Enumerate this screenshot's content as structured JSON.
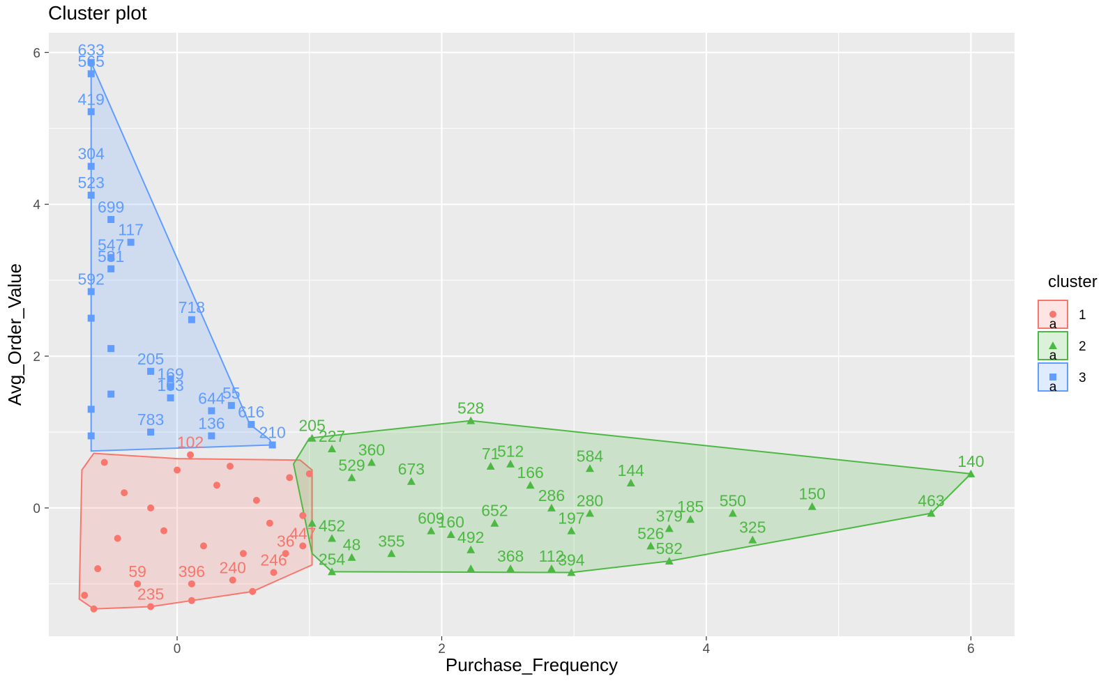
{
  "chart_data": {
    "type": "scatter",
    "title": "Cluster plot",
    "xlabel": "Purchase_Frequency",
    "ylabel": "Avg_Order_Value",
    "xlim": [
      -0.97,
      6.33
    ],
    "ylim": [
      -1.69,
      6.26
    ],
    "x_ticks": [
      0,
      2,
      4,
      6
    ],
    "y_ticks": [
      0,
      2,
      4,
      6
    ],
    "grid": true,
    "legend_position": "right",
    "legend_title": "cluster",
    "legend_glyph_text": "a",
    "series": [
      {
        "name": "1",
        "color": "#F8766D",
        "marker": "circle",
        "hull": [
          [
            -0.63,
            -1.33
          ],
          [
            -0.2,
            -1.3
          ],
          [
            0.11,
            -1.22
          ],
          [
            0.57,
            -1.1
          ],
          [
            1.02,
            -0.75
          ],
          [
            1.02,
            0.5
          ],
          [
            0.93,
            0.63
          ],
          [
            0.0,
            0.65
          ],
          [
            -0.63,
            0.72
          ],
          [
            -0.72,
            0.5
          ],
          [
            -0.74,
            -1.2
          ]
        ],
        "points": [
          {
            "x": -0.63,
            "y": -1.33,
            "label": ""
          },
          {
            "x": -0.2,
            "y": -1.3,
            "label": "235"
          },
          {
            "x": 0.11,
            "y": -1.22,
            "label": ""
          },
          {
            "x": 0.57,
            "y": -1.1,
            "label": ""
          },
          {
            "x": 0.73,
            "y": -0.85,
            "label": "246"
          },
          {
            "x": 0.42,
            "y": -0.95,
            "label": "240"
          },
          {
            "x": 0.11,
            "y": -1.0,
            "label": "396"
          },
          {
            "x": -0.3,
            "y": -1.0,
            "label": "59"
          },
          {
            "x": 0.82,
            "y": -0.6,
            "label": "36"
          },
          {
            "x": 0.95,
            "y": -0.5,
            "label": "447"
          },
          {
            "x": 0.5,
            "y": -0.6,
            "label": ""
          },
          {
            "x": 0.2,
            "y": -0.5,
            "label": ""
          },
          {
            "x": -0.1,
            "y": -0.3,
            "label": ""
          },
          {
            "x": -0.4,
            "y": 0.2,
            "label": ""
          },
          {
            "x": 0.0,
            "y": 0.5,
            "label": ""
          },
          {
            "x": 0.3,
            "y": 0.3,
            "label": ""
          },
          {
            "x": 0.6,
            "y": 0.1,
            "label": ""
          },
          {
            "x": 0.85,
            "y": 0.4,
            "label": ""
          },
          {
            "x": 1.0,
            "y": 0.45,
            "label": ""
          },
          {
            "x": -0.6,
            "y": -0.8,
            "label": ""
          },
          {
            "x": -0.55,
            "y": 0.6,
            "label": ""
          },
          {
            "x": 0.1,
            "y": 0.7,
            "label": "102"
          },
          {
            "x": -0.45,
            "y": -0.4,
            "label": ""
          },
          {
            "x": 0.7,
            "y": -0.2,
            "label": ""
          },
          {
            "x": 0.95,
            "y": -0.1,
            "label": ""
          },
          {
            "x": -0.2,
            "y": 0.0,
            "label": ""
          },
          {
            "x": 0.4,
            "y": 0.55,
            "label": ""
          },
          {
            "x": -0.7,
            "y": -1.15,
            "label": ""
          }
        ]
      },
      {
        "name": "2",
        "color": "#4DB843",
        "marker": "triangle",
        "hull": [
          [
            0.88,
            0.58
          ],
          [
            1.0,
            0.92
          ],
          [
            2.22,
            1.15
          ],
          [
            6.0,
            0.45
          ],
          [
            5.7,
            -0.07
          ],
          [
            3.72,
            -0.7
          ],
          [
            2.98,
            -0.85
          ],
          [
            1.17,
            -0.84
          ],
          [
            1.02,
            -0.6
          ]
        ],
        "points": [
          {
            "x": 2.22,
            "y": 1.15,
            "label": "528"
          },
          {
            "x": 6.0,
            "y": 0.45,
            "label": "140"
          },
          {
            "x": 5.7,
            "y": -0.07,
            "label": "463"
          },
          {
            "x": 4.8,
            "y": 0.02,
            "label": "150"
          },
          {
            "x": 4.35,
            "y": -0.42,
            "label": "325"
          },
          {
            "x": 4.2,
            "y": -0.07,
            "label": "550"
          },
          {
            "x": 3.88,
            "y": -0.15,
            "label": "185"
          },
          {
            "x": 3.72,
            "y": -0.27,
            "label": "379"
          },
          {
            "x": 3.72,
            "y": -0.7,
            "label": "582"
          },
          {
            "x": 3.58,
            "y": -0.5,
            "label": "526"
          },
          {
            "x": 3.43,
            "y": 0.33,
            "label": "144"
          },
          {
            "x": 3.12,
            "y": 0.52,
            "label": "584"
          },
          {
            "x": 3.12,
            "y": -0.07,
            "label": "280"
          },
          {
            "x": 2.98,
            "y": -0.85,
            "label": "394"
          },
          {
            "x": 2.98,
            "y": -0.3,
            "label": "197"
          },
          {
            "x": 2.83,
            "y": -0.8,
            "label": "112"
          },
          {
            "x": 2.83,
            "y": 0.0,
            "label": "286"
          },
          {
            "x": 2.52,
            "y": 0.58,
            "label": "512"
          },
          {
            "x": 2.52,
            "y": -0.8,
            "label": "368"
          },
          {
            "x": 2.37,
            "y": 0.55,
            "label": "71"
          },
          {
            "x": 2.22,
            "y": -0.55,
            "label": "492"
          },
          {
            "x": 2.22,
            "y": -0.8,
            "label": ""
          },
          {
            "x": 2.07,
            "y": -0.35,
            "label": "160"
          },
          {
            "x": 1.92,
            "y": -0.3,
            "label": "609"
          },
          {
            "x": 1.62,
            "y": -0.6,
            "label": "355"
          },
          {
            "x": 1.32,
            "y": -0.65,
            "label": "48"
          },
          {
            "x": 1.17,
            "y": -0.84,
            "label": "254"
          },
          {
            "x": 1.17,
            "y": 0.78,
            "label": "227"
          },
          {
            "x": 1.02,
            "y": 0.92,
            "label": "205"
          },
          {
            "x": 1.47,
            "y": 0.6,
            "label": "360"
          },
          {
            "x": 1.32,
            "y": 0.4,
            "label": "529"
          },
          {
            "x": 1.77,
            "y": 0.35,
            "label": "673"
          },
          {
            "x": 2.67,
            "y": 0.3,
            "label": "166"
          },
          {
            "x": 1.02,
            "y": -0.2,
            "label": ""
          },
          {
            "x": 1.17,
            "y": -0.4,
            "label": "452"
          },
          {
            "x": 2.4,
            "y": -0.2,
            "label": "652"
          }
        ]
      },
      {
        "name": "3",
        "color": "#619CFF",
        "marker": "square",
        "hull": [
          [
            -0.65,
            5.87
          ],
          [
            -0.65,
            0.75
          ],
          [
            0.72,
            0.83
          ],
          [
            0.7,
            0.9
          ],
          [
            0.55,
            1.1
          ]
        ],
        "points": [
          {
            "x": -0.65,
            "y": 5.87,
            "label": "633"
          },
          {
            "x": -0.65,
            "y": 5.72,
            "label": "565"
          },
          {
            "x": -0.65,
            "y": 5.22,
            "label": "419"
          },
          {
            "x": -0.65,
            "y": 4.5,
            "label": "304"
          },
          {
            "x": -0.65,
            "y": 4.12,
            "label": "523"
          },
          {
            "x": -0.5,
            "y": 3.8,
            "label": "699"
          },
          {
            "x": -0.35,
            "y": 3.5,
            "label": "117"
          },
          {
            "x": -0.5,
            "y": 3.3,
            "label": "547"
          },
          {
            "x": -0.5,
            "y": 3.15,
            "label": "531"
          },
          {
            "x": -0.65,
            "y": 2.85,
            "label": "592"
          },
          {
            "x": 0.11,
            "y": 2.48,
            "label": "718"
          },
          {
            "x": -0.65,
            "y": 2.5,
            "label": ""
          },
          {
            "x": -0.5,
            "y": 2.1,
            "label": ""
          },
          {
            "x": -0.2,
            "y": 1.8,
            "label": "205"
          },
          {
            "x": -0.05,
            "y": 1.7,
            "label": ""
          },
          {
            "x": -0.05,
            "y": 1.45,
            "label": "103"
          },
          {
            "x": -0.05,
            "y": 1.6,
            "label": "169"
          },
          {
            "x": 0.26,
            "y": 1.28,
            "label": "644"
          },
          {
            "x": 0.41,
            "y": 1.35,
            "label": "55"
          },
          {
            "x": 0.56,
            "y": 1.1,
            "label": "616"
          },
          {
            "x": 0.26,
            "y": 0.95,
            "label": "136"
          },
          {
            "x": 0.72,
            "y": 0.83,
            "label": "210"
          },
          {
            "x": -0.2,
            "y": 1.0,
            "label": "783"
          },
          {
            "x": -0.65,
            "y": 1.3,
            "label": ""
          },
          {
            "x": -0.5,
            "y": 1.5,
            "label": ""
          },
          {
            "x": -0.65,
            "y": 0.95,
            "label": ""
          }
        ]
      }
    ]
  }
}
